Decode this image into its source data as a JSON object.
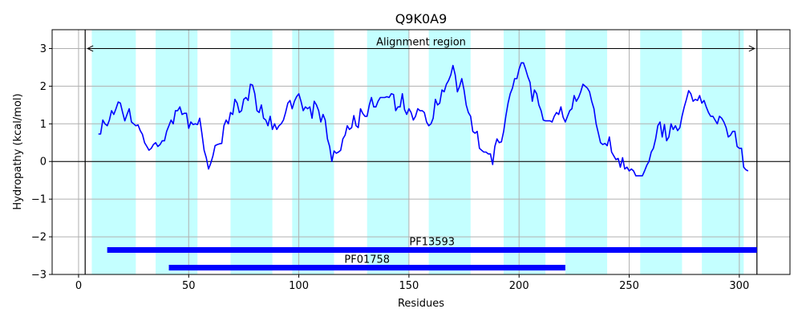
{
  "chart_data": {
    "type": "line",
    "title": "Q9K0A9",
    "xlabel": "Residues",
    "ylabel": "Hydropathy (kcal/mol)",
    "xlim": [
      -12,
      323
    ],
    "ylim": [
      -3,
      3.5
    ],
    "xticks": [
      0,
      50,
      100,
      150,
      200,
      250,
      300
    ],
    "yticks": [
      -3,
      -2,
      -1,
      0,
      1,
      2,
      3
    ],
    "grid": true,
    "colors": {
      "line": "#0000ff",
      "band": "#c4ffff",
      "domain_bar": "#0000ff",
      "zero_line": "#000000",
      "grid": "#b0b0b0"
    },
    "series": [
      {
        "x": [
          9,
          10,
          11,
          12,
          13,
          14,
          15,
          16,
          17,
          18,
          19,
          20,
          21,
          22,
          23,
          24,
          25,
          26,
          27,
          28,
          29,
          30,
          31,
          32,
          33,
          34,
          35,
          36,
          37,
          38,
          39,
          40,
          41,
          42,
          43,
          44,
          45,
          46,
          47,
          48,
          49,
          50,
          51,
          52,
          53,
          54,
          55,
          56,
          57,
          58,
          59,
          60,
          61,
          62,
          63,
          64,
          65,
          66,
          67,
          68,
          69,
          70,
          71,
          72,
          73,
          74,
          75,
          76,
          77,
          78,
          79,
          80,
          81,
          82,
          83,
          84,
          85,
          86,
          87,
          88,
          89,
          90,
          91,
          92,
          93,
          94,
          95,
          96,
          97,
          98,
          99,
          100,
          101,
          102,
          103,
          104,
          105,
          106,
          107,
          108,
          109,
          110,
          111,
          112,
          113,
          114,
          115,
          116,
          117,
          118,
          119,
          120,
          121,
          122,
          123,
          124,
          125,
          126,
          127,
          128,
          129,
          130,
          131,
          132,
          133,
          134,
          135,
          136,
          137,
          138,
          139,
          140,
          141,
          142,
          143,
          144,
          145,
          146,
          147,
          148,
          149,
          150,
          151,
          152,
          153,
          154,
          155,
          156,
          157,
          158,
          159,
          160,
          161,
          162,
          163,
          164,
          165,
          166,
          167,
          168,
          169,
          170,
          171,
          172,
          173,
          174,
          175,
          176,
          177,
          178,
          179,
          180,
          181,
          182,
          183,
          184,
          185,
          186,
          187,
          188,
          189,
          190,
          191,
          192,
          193,
          194,
          195,
          196,
          197,
          198,
          199,
          200,
          201,
          202,
          203,
          204,
          205,
          206,
          207,
          208,
          209,
          210,
          211,
          212,
          213,
          214,
          215,
          216,
          217,
          218,
          219,
          220,
          221,
          222,
          223,
          224,
          225,
          226,
          227,
          228,
          229,
          230,
          231,
          232,
          233,
          234,
          235,
          236,
          237,
          238,
          239,
          240,
          241,
          242,
          243,
          244,
          245,
          246,
          247,
          248,
          249,
          250,
          251,
          252,
          253,
          254,
          255,
          256,
          257,
          258,
          259,
          260,
          261,
          262,
          263,
          264,
          265,
          266,
          267,
          268,
          269,
          270,
          271,
          272,
          273,
          274,
          275,
          276,
          277,
          278,
          279,
          280,
          281,
          282,
          283,
          284,
          285,
          286,
          287,
          288,
          289,
          290,
          291,
          292,
          293,
          294,
          295,
          296,
          297,
          298,
          299,
          300,
          301,
          302,
          303,
          304
        ],
        "values": [
          0.73,
          0.73,
          1.1,
          1.0,
          0.95,
          1.1,
          1.35,
          1.25,
          1.4,
          1.58,
          1.55,
          1.3,
          1.08,
          1.25,
          1.4,
          1.05,
          1.0,
          0.95,
          0.97,
          0.82,
          0.72,
          0.5,
          0.4,
          0.3,
          0.35,
          0.45,
          0.5,
          0.4,
          0.45,
          0.55,
          0.55,
          0.8,
          0.95,
          1.1,
          1.0,
          1.35,
          1.35,
          1.45,
          1.25,
          1.28,
          1.28,
          0.88,
          1.05,
          0.98,
          1.0,
          0.98,
          1.15,
          0.75,
          0.3,
          0.1,
          -0.2,
          -0.05,
          0.15,
          0.42,
          0.45,
          0.47,
          0.48,
          0.95,
          1.1,
          1.0,
          1.3,
          1.25,
          1.65,
          1.55,
          1.3,
          1.35,
          1.65,
          1.7,
          1.62,
          2.05,
          2.03,
          1.8,
          1.35,
          1.3,
          1.5,
          1.15,
          1.1,
          0.95,
          1.2,
          0.85,
          1.0,
          0.85,
          0.95,
          1.0,
          1.1,
          1.3,
          1.55,
          1.62,
          1.4,
          1.6,
          1.72,
          1.8,
          1.6,
          1.35,
          1.45,
          1.4,
          1.45,
          1.15,
          1.6,
          1.5,
          1.35,
          1.05,
          1.25,
          1.1,
          0.6,
          0.4,
          0.0,
          0.28,
          0.22,
          0.25,
          0.3,
          0.6,
          0.7,
          0.95,
          0.85,
          0.9,
          1.22,
          0.95,
          0.9,
          1.4,
          1.28,
          1.2,
          1.2,
          1.5,
          1.7,
          1.45,
          1.45,
          1.6,
          1.7,
          1.7,
          1.7,
          1.72,
          1.7,
          1.8,
          1.78,
          1.35,
          1.45,
          1.45,
          1.8,
          1.38,
          1.25,
          1.4,
          1.3,
          1.1,
          1.2,
          1.4,
          1.35,
          1.35,
          1.3,
          1.05,
          0.95,
          1.0,
          1.15,
          1.65,
          1.5,
          1.55,
          1.9,
          1.85,
          2.05,
          2.15,
          2.3,
          2.55,
          2.3,
          1.85,
          2.0,
          2.2,
          1.9,
          1.5,
          1.3,
          1.2,
          0.8,
          0.75,
          0.8,
          0.35,
          0.3,
          0.25,
          0.25,
          0.2,
          0.2,
          -0.08,
          0.4,
          0.6,
          0.5,
          0.52,
          0.8,
          1.2,
          1.55,
          1.8,
          1.95,
          2.2,
          2.2,
          2.45,
          2.62,
          2.62,
          2.45,
          2.25,
          2.1,
          1.6,
          1.9,
          1.8,
          1.5,
          1.35,
          1.1,
          1.08,
          1.08,
          1.08,
          1.05,
          1.2,
          1.3,
          1.25,
          1.45,
          1.18,
          1.05,
          1.2,
          1.35,
          1.4,
          1.75,
          1.6,
          1.7,
          1.85,
          2.05,
          2.0,
          1.95,
          1.85,
          1.6,
          1.4,
          1.0,
          0.75,
          0.5,
          0.45,
          0.48,
          0.42,
          0.65,
          0.25,
          0.15,
          0.05,
          0.08,
          -0.15,
          0.1,
          -0.2,
          -0.15,
          -0.25,
          -0.2,
          -0.25,
          -0.38,
          -0.38,
          -0.38,
          -0.38,
          -0.25,
          -0.1,
          0.0,
          0.25,
          0.35,
          0.6,
          0.95,
          1.05,
          0.65,
          0.98,
          0.55,
          0.65,
          1.0,
          0.85,
          0.95,
          0.82,
          0.9,
          1.2,
          1.45,
          1.65,
          1.88,
          1.8,
          1.6,
          1.65,
          1.62,
          1.75,
          1.55,
          1.62,
          1.45,
          1.3,
          1.2,
          1.2,
          1.1,
          1.0,
          1.2,
          1.15,
          1.05,
          0.9,
          0.65,
          0.7,
          0.8,
          0.8,
          0.4,
          0.35,
          0.35,
          -0.15,
          -0.22,
          -0.25
        ]
      }
    ],
    "bands": [
      [
        6,
        26
      ],
      [
        35,
        54
      ],
      [
        69,
        88
      ],
      [
        97,
        116
      ],
      [
        131,
        150
      ],
      [
        159,
        178
      ],
      [
        193,
        212
      ],
      [
        221,
        240
      ],
      [
        255,
        274
      ],
      [
        283,
        302
      ]
    ],
    "region": {
      "label": "Alignment region",
      "start": 3,
      "end": 308,
      "y": 3.0
    },
    "domains": [
      {
        "label": "PF13593",
        "start": 13,
        "end": 308,
        "y": -2.35
      },
      {
        "label": "PF01758",
        "start": 41,
        "end": 221,
        "y": -2.82
      }
    ]
  }
}
